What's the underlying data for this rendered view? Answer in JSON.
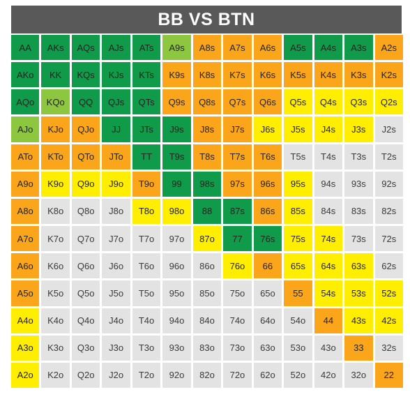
{
  "title": "BB VS BTN",
  "colors": {
    "dg": "#0f9b49",
    "lg": "#8dc63f",
    "or": "#fba61a",
    "ye": "#ffee00",
    "gr": "#e3e3e3",
    "header": "#595959"
  },
  "rows": [
    [
      {
        "h": "AA",
        "c": "dg"
      },
      {
        "h": "AKs",
        "c": "dg"
      },
      {
        "h": "AQs",
        "c": "dg"
      },
      {
        "h": "AJs",
        "c": "dg"
      },
      {
        "h": "ATs",
        "c": "dg"
      },
      {
        "h": "A9s",
        "c": "lg"
      },
      {
        "h": "A8s",
        "c": "or"
      },
      {
        "h": "A7s",
        "c": "or"
      },
      {
        "h": "A6s",
        "c": "or"
      },
      {
        "h": "A5s",
        "c": "dg"
      },
      {
        "h": "A4s",
        "c": "dg"
      },
      {
        "h": "A3s",
        "c": "dg"
      },
      {
        "h": "A2s",
        "c": "or"
      }
    ],
    [
      {
        "h": "AKo",
        "c": "dg"
      },
      {
        "h": "KK",
        "c": "dg"
      },
      {
        "h": "KQs",
        "c": "dg"
      },
      {
        "h": "KJs",
        "c": "dg"
      },
      {
        "h": "KTs",
        "c": "dg"
      },
      {
        "h": "K9s",
        "c": "or"
      },
      {
        "h": "K8s",
        "c": "or"
      },
      {
        "h": "K7s",
        "c": "or"
      },
      {
        "h": "K6s",
        "c": "or"
      },
      {
        "h": "K5s",
        "c": "or"
      },
      {
        "h": "K4s",
        "c": "or"
      },
      {
        "h": "K3s",
        "c": "or"
      },
      {
        "h": "K2s",
        "c": "or"
      }
    ],
    [
      {
        "h": "AQo",
        "c": "dg"
      },
      {
        "h": "KQo",
        "c": "lg"
      },
      {
        "h": "QQ",
        "c": "dg"
      },
      {
        "h": "QJs",
        "c": "dg"
      },
      {
        "h": "QTs",
        "c": "dg"
      },
      {
        "h": "Q9s",
        "c": "or"
      },
      {
        "h": "Q8s",
        "c": "or"
      },
      {
        "h": "Q7s",
        "c": "or"
      },
      {
        "h": "Q6s",
        "c": "or"
      },
      {
        "h": "Q5s",
        "c": "ye"
      },
      {
        "h": "Q4s",
        "c": "ye"
      },
      {
        "h": "Q3s",
        "c": "ye"
      },
      {
        "h": "Q2s",
        "c": "ye"
      }
    ],
    [
      {
        "h": "AJo",
        "c": "lg"
      },
      {
        "h": "KJo",
        "c": "or"
      },
      {
        "h": "QJo",
        "c": "or"
      },
      {
        "h": "JJ",
        "c": "dg"
      },
      {
        "h": "JTs",
        "c": "dg"
      },
      {
        "h": "J9s",
        "c": "dg"
      },
      {
        "h": "J8s",
        "c": "or"
      },
      {
        "h": "J7s",
        "c": "or"
      },
      {
        "h": "J6s",
        "c": "ye"
      },
      {
        "h": "J5s",
        "c": "ye"
      },
      {
        "h": "J4s",
        "c": "ye"
      },
      {
        "h": "J3s",
        "c": "ye"
      },
      {
        "h": "J2s",
        "c": "gr"
      }
    ],
    [
      {
        "h": "ATo",
        "c": "or"
      },
      {
        "h": "KTo",
        "c": "or"
      },
      {
        "h": "QTo",
        "c": "or"
      },
      {
        "h": "JTo",
        "c": "or"
      },
      {
        "h": "TT",
        "c": "dg"
      },
      {
        "h": "T9s",
        "c": "dg"
      },
      {
        "h": "T8s",
        "c": "or"
      },
      {
        "h": "T7s",
        "c": "or"
      },
      {
        "h": "T6s",
        "c": "or"
      },
      {
        "h": "T5s",
        "c": "gr"
      },
      {
        "h": "T4s",
        "c": "gr"
      },
      {
        "h": "T3s",
        "c": "gr"
      },
      {
        "h": "T2s",
        "c": "gr"
      }
    ],
    [
      {
        "h": "A9o",
        "c": "or"
      },
      {
        "h": "K9o",
        "c": "ye"
      },
      {
        "h": "Q9o",
        "c": "ye"
      },
      {
        "h": "J9o",
        "c": "ye"
      },
      {
        "h": "T9o",
        "c": "or"
      },
      {
        "h": "99",
        "c": "dg"
      },
      {
        "h": "98s",
        "c": "dg"
      },
      {
        "h": "97s",
        "c": "or"
      },
      {
        "h": "96s",
        "c": "or"
      },
      {
        "h": "95s",
        "c": "ye"
      },
      {
        "h": "94s",
        "c": "gr"
      },
      {
        "h": "93s",
        "c": "gr"
      },
      {
        "h": "92s",
        "c": "gr"
      }
    ],
    [
      {
        "h": "A8o",
        "c": "or"
      },
      {
        "h": "K8o",
        "c": "gr"
      },
      {
        "h": "Q8o",
        "c": "gr"
      },
      {
        "h": "J8o",
        "c": "gr"
      },
      {
        "h": "T8o",
        "c": "ye"
      },
      {
        "h": "98o",
        "c": "ye"
      },
      {
        "h": "88",
        "c": "dg"
      },
      {
        "h": "87s",
        "c": "dg"
      },
      {
        "h": "86s",
        "c": "or"
      },
      {
        "h": "85s",
        "c": "ye"
      },
      {
        "h": "84s",
        "c": "gr"
      },
      {
        "h": "83s",
        "c": "gr"
      },
      {
        "h": "82s",
        "c": "gr"
      }
    ],
    [
      {
        "h": "A7o",
        "c": "or"
      },
      {
        "h": "K7o",
        "c": "gr"
      },
      {
        "h": "Q7o",
        "c": "gr"
      },
      {
        "h": "J7o",
        "c": "gr"
      },
      {
        "h": "T7o",
        "c": "gr"
      },
      {
        "h": "97o",
        "c": "gr"
      },
      {
        "h": "87o",
        "c": "ye"
      },
      {
        "h": "77",
        "c": "dg"
      },
      {
        "h": "76s",
        "c": "dg"
      },
      {
        "h": "75s",
        "c": "ye"
      },
      {
        "h": "74s",
        "c": "ye"
      },
      {
        "h": "73s",
        "c": "gr"
      },
      {
        "h": "72s",
        "c": "gr"
      }
    ],
    [
      {
        "h": "A6o",
        "c": "or"
      },
      {
        "h": "K6o",
        "c": "gr"
      },
      {
        "h": "Q6o",
        "c": "gr"
      },
      {
        "h": "J6o",
        "c": "gr"
      },
      {
        "h": "T6o",
        "c": "gr"
      },
      {
        "h": "96o",
        "c": "gr"
      },
      {
        "h": "86o",
        "c": "gr"
      },
      {
        "h": "76o",
        "c": "ye"
      },
      {
        "h": "66",
        "c": "or"
      },
      {
        "h": "65s",
        "c": "ye"
      },
      {
        "h": "64s",
        "c": "ye"
      },
      {
        "h": "63s",
        "c": "ye"
      },
      {
        "h": "62s",
        "c": "gr"
      }
    ],
    [
      {
        "h": "A5o",
        "c": "or"
      },
      {
        "h": "K5o",
        "c": "gr"
      },
      {
        "h": "Q5o",
        "c": "gr"
      },
      {
        "h": "J5o",
        "c": "gr"
      },
      {
        "h": "T5o",
        "c": "gr"
      },
      {
        "h": "95o",
        "c": "gr"
      },
      {
        "h": "85o",
        "c": "gr"
      },
      {
        "h": "75o",
        "c": "gr"
      },
      {
        "h": "65o",
        "c": "gr"
      },
      {
        "h": "55",
        "c": "or"
      },
      {
        "h": "54s",
        "c": "ye"
      },
      {
        "h": "53s",
        "c": "ye"
      },
      {
        "h": "52s",
        "c": "ye"
      }
    ],
    [
      {
        "h": "A4o",
        "c": "ye"
      },
      {
        "h": "K4o",
        "c": "gr"
      },
      {
        "h": "Q4o",
        "c": "gr"
      },
      {
        "h": "J4o",
        "c": "gr"
      },
      {
        "h": "T4o",
        "c": "gr"
      },
      {
        "h": "94o",
        "c": "gr"
      },
      {
        "h": "84o",
        "c": "gr"
      },
      {
        "h": "74o",
        "c": "gr"
      },
      {
        "h": "64o",
        "c": "gr"
      },
      {
        "h": "54o",
        "c": "gr"
      },
      {
        "h": "44",
        "c": "or"
      },
      {
        "h": "43s",
        "c": "ye"
      },
      {
        "h": "42s",
        "c": "ye"
      }
    ],
    [
      {
        "h": "A3o",
        "c": "ye"
      },
      {
        "h": "K3o",
        "c": "gr"
      },
      {
        "h": "Q3o",
        "c": "gr"
      },
      {
        "h": "J3o",
        "c": "gr"
      },
      {
        "h": "T3o",
        "c": "gr"
      },
      {
        "h": "93o",
        "c": "gr"
      },
      {
        "h": "83o",
        "c": "gr"
      },
      {
        "h": "73o",
        "c": "gr"
      },
      {
        "h": "63o",
        "c": "gr"
      },
      {
        "h": "53o",
        "c": "gr"
      },
      {
        "h": "43o",
        "c": "gr"
      },
      {
        "h": "33",
        "c": "or"
      },
      {
        "h": "32s",
        "c": "gr"
      }
    ],
    [
      {
        "h": "A2o",
        "c": "ye"
      },
      {
        "h": "K2o",
        "c": "gr"
      },
      {
        "h": "Q2o",
        "c": "gr"
      },
      {
        "h": "J2o",
        "c": "gr"
      },
      {
        "h": "T2o",
        "c": "gr"
      },
      {
        "h": "92o",
        "c": "gr"
      },
      {
        "h": "82o",
        "c": "gr"
      },
      {
        "h": "72o",
        "c": "gr"
      },
      {
        "h": "62o",
        "c": "gr"
      },
      {
        "h": "52o",
        "c": "gr"
      },
      {
        "h": "42o",
        "c": "gr"
      },
      {
        "h": "32o",
        "c": "gr"
      },
      {
        "h": "22",
        "c": "or"
      }
    ]
  ]
}
